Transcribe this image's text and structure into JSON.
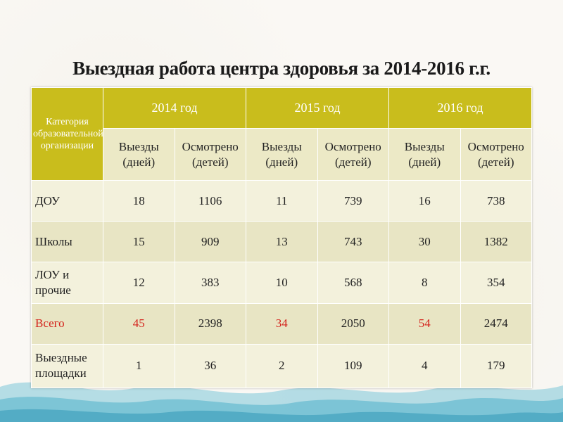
{
  "title": "Выездная работа центра здоровья за 2014-2016 г.г.",
  "table": {
    "category_header": "Категория образовательной организации",
    "years": [
      "2014 год",
      "2015 год",
      "2016 год"
    ],
    "sub_headers": [
      "Выезды (дней)",
      "Осмотрено (детей)",
      "Выезды (дней)",
      "Осмотрено (детей)",
      "Выезды (дней)",
      "Осмотрено (детей)"
    ],
    "rows": [
      {
        "label": "ДОУ",
        "values": [
          "18",
          "1106",
          "11",
          "739",
          "16",
          "738"
        ]
      },
      {
        "label": "Школы",
        "values": [
          "15",
          "909",
          "13",
          "743",
          "30",
          "1382"
        ]
      },
      {
        "label": "ЛОУ и прочие",
        "values": [
          "12",
          "383",
          "10",
          "568",
          "8",
          "354"
        ]
      },
      {
        "label": "Всего",
        "values": [
          "45",
          "2398",
          "34",
          "2050",
          "54",
          "2474"
        ]
      },
      {
        "label": "Выездные площадки",
        "values": [
          "1",
          "36",
          "2",
          "109",
          "4",
          "179"
        ]
      }
    ]
  },
  "colors": {
    "header_bg": "#c9bd1c",
    "subheader_bg": "#ece9c6",
    "row_bg": "#f3f1dc",
    "row_alt_bg": "#e8e5c4",
    "highlight_red": "#d4231c"
  }
}
